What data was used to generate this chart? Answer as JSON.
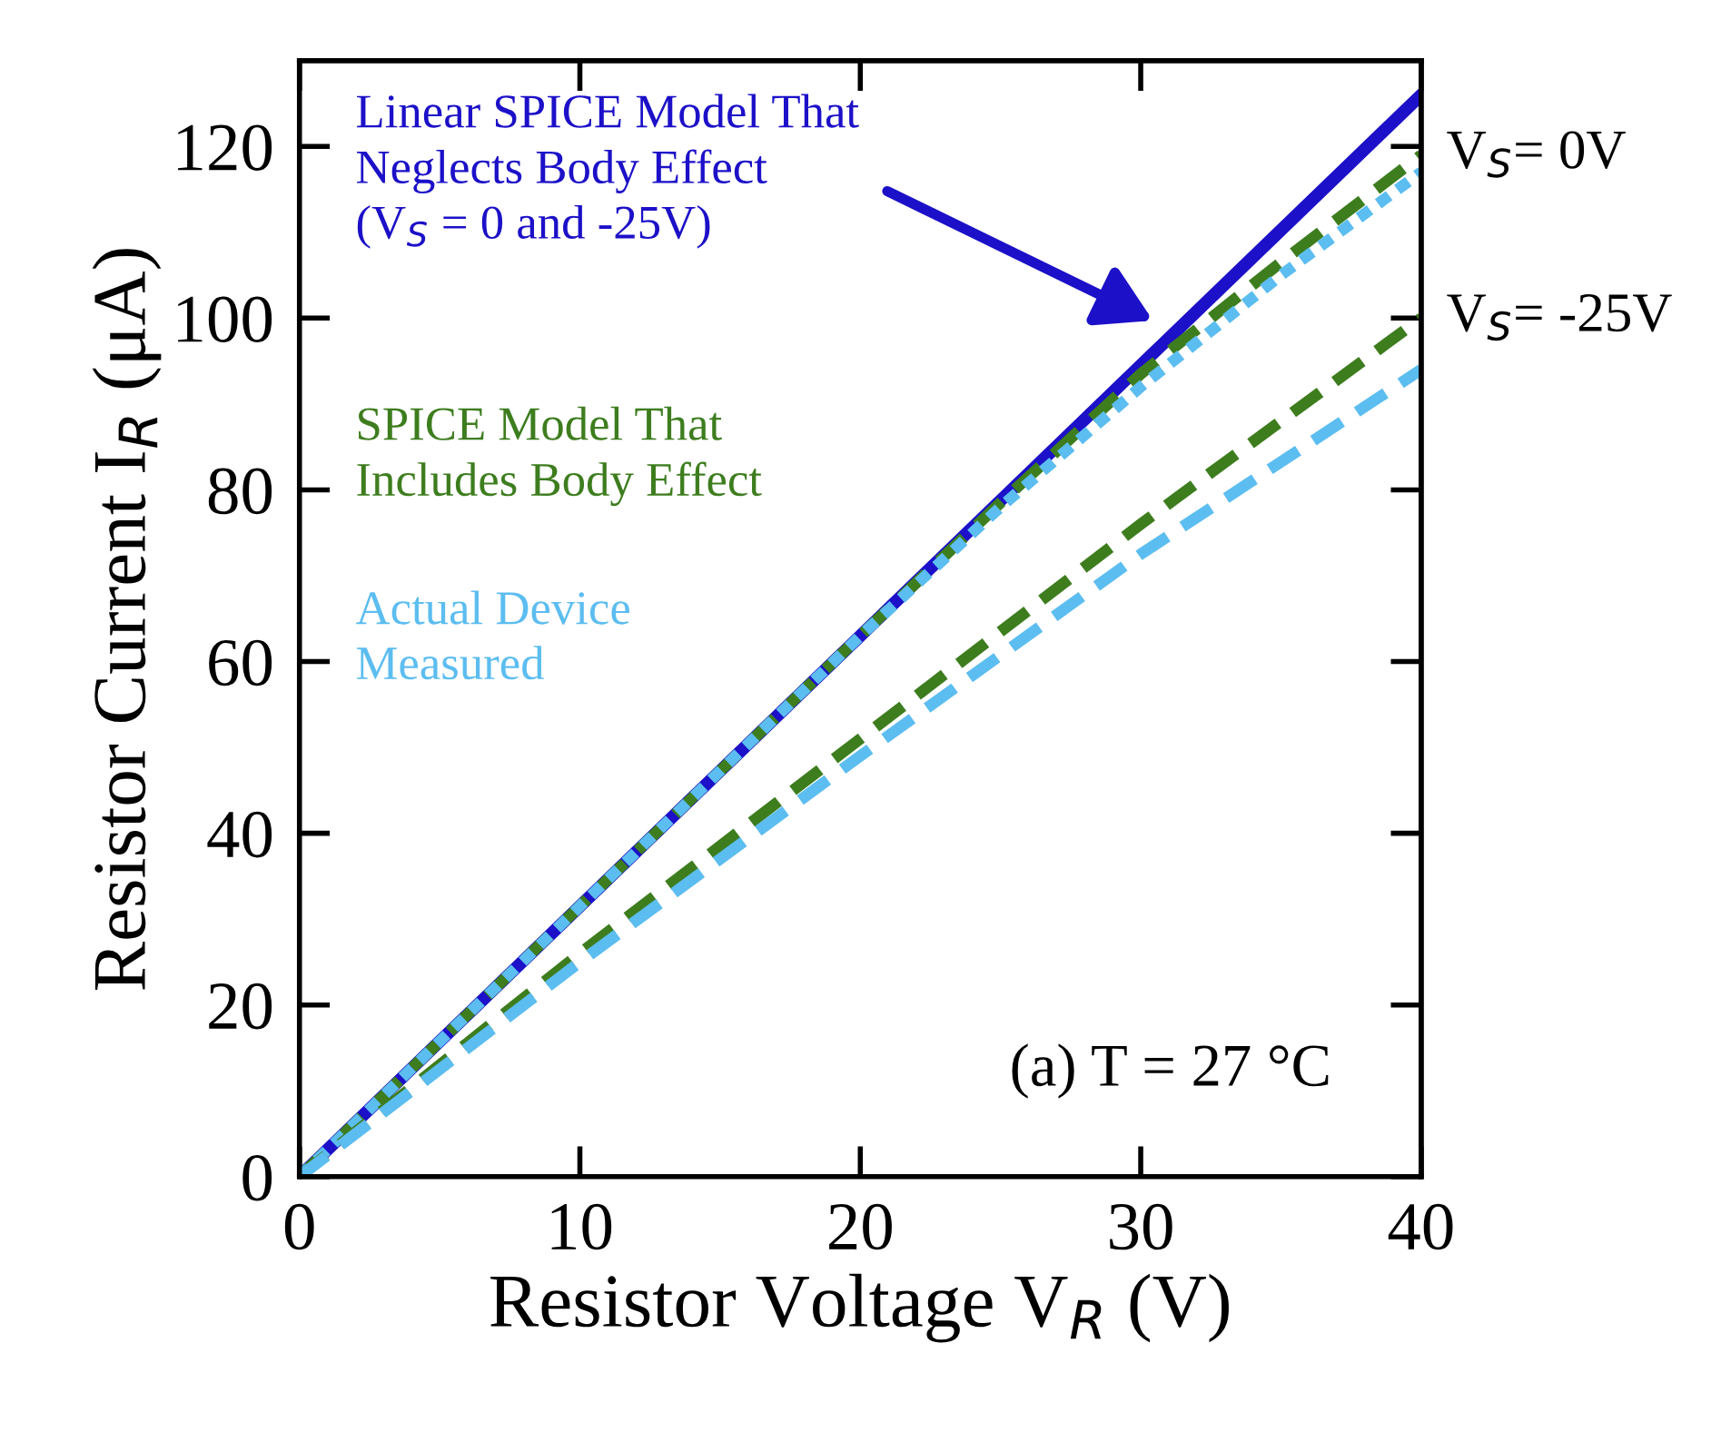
{
  "chart_data": {
    "type": "line",
    "xlabel": "Resistor Voltage V$_{R}$ (V)",
    "ylabel": "Resistor Current I$_{R}$ (μA)",
    "xlim": [
      0,
      40
    ],
    "xticks": [
      0,
      10,
      20,
      30,
      40
    ],
    "ylim": [
      0,
      130
    ],
    "yticks": [
      0,
      20,
      40,
      60,
      80,
      100,
      120
    ],
    "grid": false,
    "legend": false,
    "series": [
      {
        "color": "#1c10c8",
        "line_style": "solid",
        "x": [
          0,
          10,
          20,
          30,
          40
        ],
        "values": [
          0,
          31.5,
          63,
          94.5,
          126
        ]
      },
      {
        "name": "SPICE Model That\nIncludes Body Effect",
        "color": "#3d7d1e",
        "line_style": "dashed",
        "x": [
          0,
          10,
          20,
          25,
          30,
          35,
          40
        ],
        "values": [
          0,
          31.5,
          63,
          78.5,
          93.5,
          106.5,
          119
        ]
      },
      {
        "name": "Actual Device\nMeasured",
        "color": "#5cbdf0",
        "line_style": "dotted",
        "x": [
          0,
          10,
          20,
          25,
          30,
          35,
          40
        ],
        "values": [
          0,
          31.5,
          63,
          78,
          92,
          105,
          117
        ]
      },
      {
        "color": "#3d7d1e",
        "line_style": "dashed",
        "x": [
          0,
          10,
          20,
          30,
          40
        ],
        "values": [
          0,
          26,
          51,
          76,
          100
        ]
      },
      {
        "color": "#5cbdf0",
        "line_style": "dashed",
        "x": [
          0,
          10,
          20,
          30,
          40
        ],
        "values": [
          0,
          25,
          49,
          72.5,
          94
        ]
      }
    ],
    "annotations": [
      "Linear SPICE Model That\nNeglects Body Effect\n(V$_{S}$ = 0 and -25V)",
      {
        "text": "V$_{S}$= 0V",
        "x": 40,
        "y": 119
      },
      {
        "text": "V$_{S}$= -25V",
        "x": 40,
        "y": 100
      },
      "(a) T = 27 °C"
    ]
  }
}
